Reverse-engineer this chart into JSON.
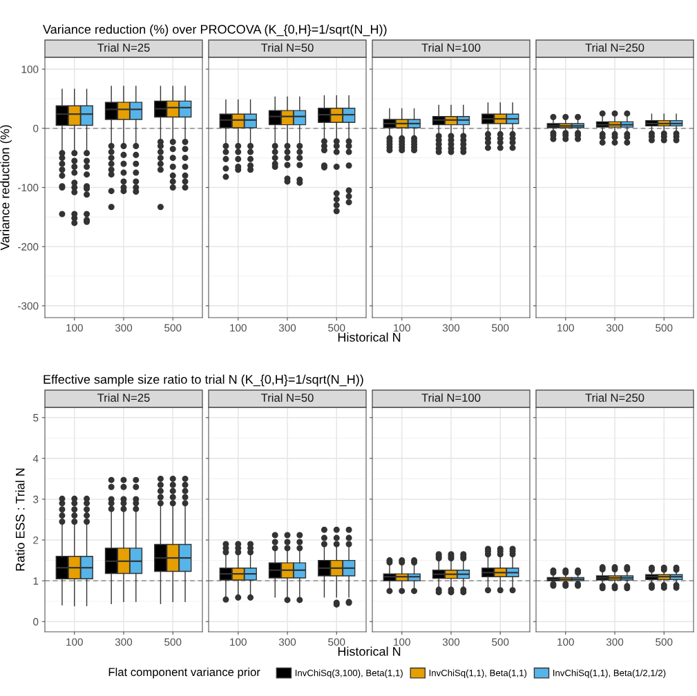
{
  "chart_data": [
    {
      "type": "box",
      "title": "Variance reduction (%) over PROCOVA (K_{0,H}=1/sqrt(N_H))",
      "subtitle": "Trial N=25",
      "ylabel": "Variance reduction (%)",
      "categories": [
        "100",
        "300",
        "500"
      ],
      "ylim": [
        -320,
        120
      ],
      "yticks": [
        -300,
        -200,
        -100,
        0,
        100
      ],
      "grid": true,
      "legend": "bottom",
      "legend_title": "Flat component variance prior",
      "ref_lines": [
        {
          "axis": "y",
          "value": 0,
          "color": "#999999",
          "line_style": "dashed"
        }
      ],
      "series": [
        {
          "name": "InvChiSq(3,100), Beta(1,1)",
          "color": "#000000",
          "boxes": [
            {
              "low": -38,
              "q1": 5,
              "median": 24,
              "q3": 38,
              "high": 66,
              "outliers": [
                -42,
                -50,
                -60,
                -70,
                -80,
                -98,
                -100,
                -145
              ]
            },
            {
              "low": -26,
              "q1": 15,
              "median": 32,
              "q3": 44,
              "high": 71,
              "outliers": [
                -30,
                -40,
                -50,
                -60,
                -70,
                -78,
                -106,
                -133
              ]
            },
            {
              "low": -20,
              "q1": 19,
              "median": 33,
              "q3": 46,
              "high": 71,
              "outliers": [
                -23,
                -30,
                -40,
                -50,
                -60,
                -70,
                -133
              ]
            }
          ]
        },
        {
          "name": "InvChiSq(1,1), Beta(1,1)",
          "color": "#E69F00",
          "boxes": [
            {
              "low": -38,
              "q1": 5,
              "median": 24,
              "q3": 38,
              "high": 66,
              "outliers": [
                -42,
                -55,
                -65,
                -75,
                -92,
                -100,
                -108,
                -145,
                -152,
                -160
              ]
            },
            {
              "low": -26,
              "q1": 15,
              "median": 32,
              "q3": 44,
              "high": 71,
              "outliers": [
                -30,
                -45,
                -60,
                -75,
                -90,
                -100,
                -106
              ]
            },
            {
              "low": -20,
              "q1": 19,
              "median": 35,
              "q3": 46,
              "high": 71,
              "outliers": [
                -23,
                -35,
                -50,
                -65,
                -80,
                -90,
                -100
              ]
            }
          ]
        },
        {
          "name": "InvChiSq(1,1), Beta(1/2,1/2)",
          "color": "#56B4E9",
          "boxes": [
            {
              "low": -38,
              "q1": 5,
              "median": 24,
              "q3": 38,
              "high": 66,
              "outliers": [
                -42,
                -55,
                -65,
                -78,
                -98,
                -102,
                -112,
                -145,
                -155,
                -158
              ]
            },
            {
              "low": -26,
              "q1": 15,
              "median": 32,
              "q3": 44,
              "high": 71,
              "outliers": [
                -30,
                -45,
                -60,
                -75,
                -90,
                -100,
                -107
              ]
            },
            {
              "low": -20,
              "q1": 19,
              "median": 35,
              "q3": 46,
              "high": 71,
              "outliers": [
                -23,
                -35,
                -50,
                -65,
                -80,
                -90,
                -100
              ]
            }
          ]
        }
      ]
    },
    {
      "type": "box",
      "subtitle": "Trial N=50",
      "xlabel": "Historical N",
      "categories": [
        "100",
        "300",
        "500"
      ],
      "ylim": [
        -320,
        120
      ],
      "yticks": [
        -300,
        -200,
        -100,
        0,
        100
      ],
      "tick_labels": "x",
      "grid": true,
      "ref_lines": [
        {
          "axis": "y",
          "value": 0,
          "color": "#999999",
          "line_style": "dashed"
        }
      ],
      "series": [
        {
          "color": "#000000",
          "boxes": [
            {
              "low": -27,
              "q1": 1,
              "median": 14,
              "q3": 24,
              "high": 48,
              "outliers": [
                -30,
                -40,
                -52,
                -68,
                -82
              ]
            },
            {
              "low": -26,
              "q1": 6,
              "median": 20,
              "q3": 30,
              "high": 53,
              "outliers": [
                -30,
                -40,
                -50,
                -60,
                -65
              ]
            },
            {
              "low": -20,
              "q1": 10,
              "median": 23,
              "q3": 34,
              "high": 55,
              "outliers": [
                -22,
                -30,
                -37,
                -63,
                -66
              ]
            }
          ]
        },
        {
          "color": "#E69F00",
          "boxes": [
            {
              "low": -27,
              "q1": 1,
              "median": 14,
              "q3": 24,
              "high": 48,
              "outliers": [
                -30,
                -40,
                -52,
                -65,
                -70
              ]
            },
            {
              "low": -26,
              "q1": 6,
              "median": 20,
              "q3": 30,
              "high": 53,
              "outliers": [
                -30,
                -40,
                -50,
                -62,
                -85,
                -90
              ]
            },
            {
              "low": -20,
              "q1": 10,
              "median": 23,
              "q3": 34,
              "high": 55,
              "outliers": [
                -22,
                -30,
                -40,
                -65,
                -110,
                -120,
                -130,
                -140
              ]
            }
          ]
        },
        {
          "color": "#56B4E9",
          "boxes": [
            {
              "low": -27,
              "q1": 1,
              "median": 14,
              "q3": 24,
              "high": 48,
              "outliers": [
                -30,
                -40,
                -52,
                -63,
                -70
              ]
            },
            {
              "low": -26,
              "q1": 6,
              "median": 20,
              "q3": 30,
              "high": 53,
              "outliers": [
                -30,
                -40,
                -50,
                -62,
                -87,
                -92
              ]
            },
            {
              "low": -20,
              "q1": 10,
              "median": 23,
              "q3": 34,
              "high": 55,
              "outliers": [
                -22,
                -30,
                -40,
                -63,
                -105,
                -115,
                -125
              ]
            }
          ]
        }
      ]
    },
    {
      "type": "box",
      "subtitle": "Trial N=100",
      "categories": [
        "100",
        "300",
        "500"
      ],
      "ylim": [
        -320,
        120
      ],
      "yticks": [
        -300,
        -200,
        -100,
        0,
        100
      ],
      "tick_labels": "x",
      "grid": true,
      "ref_lines": [
        {
          "axis": "y",
          "value": 0,
          "color": "#999999",
          "line_style": "dashed"
        }
      ],
      "series": [
        {
          "color": "#000000",
          "boxes": [
            {
              "low": -15,
              "q1": 1,
              "median": 8,
              "q3": 15,
              "high": 33,
              "outliers": [
                -17,
                -22,
                -27,
                -32,
                -37
              ]
            },
            {
              "low": -11,
              "q1": 6,
              "median": 14,
              "q3": 20,
              "high": 39,
              "outliers": [
                -13,
                -20,
                -27,
                -34,
                -40
              ]
            },
            {
              "low": -9,
              "q1": 8,
              "median": 16,
              "q3": 24,
              "high": 43,
              "outliers": [
                -10,
                -17,
                -24,
                -33
              ]
            }
          ]
        },
        {
          "color": "#E69F00",
          "boxes": [
            {
              "low": -15,
              "q1": 1,
              "median": 8,
              "q3": 15,
              "high": 33,
              "outliers": [
                -17,
                -22,
                -27,
                -32,
                -37
              ]
            },
            {
              "low": -11,
              "q1": 6,
              "median": 14,
              "q3": 20,
              "high": 39,
              "outliers": [
                -13,
                -20,
                -27,
                -34,
                -40
              ]
            },
            {
              "low": -9,
              "q1": 8,
              "median": 16,
              "q3": 24,
              "high": 43,
              "outliers": [
                -10,
                -17,
                -24,
                -33
              ]
            }
          ]
        },
        {
          "color": "#56B4E9",
          "boxes": [
            {
              "low": -15,
              "q1": 1,
              "median": 8,
              "q3": 15,
              "high": 33,
              "outliers": [
                -17,
                -22,
                -27,
                -32,
                -37
              ]
            },
            {
              "low": -11,
              "q1": 6,
              "median": 14,
              "q3": 20,
              "high": 39,
              "outliers": [
                -13,
                -20,
                -27,
                -34,
                -40
              ]
            },
            {
              "low": -9,
              "q1": 8,
              "median": 16,
              "q3": 24,
              "high": 43,
              "outliers": [
                -10,
                -17,
                -24,
                -33
              ]
            }
          ]
        }
      ]
    },
    {
      "type": "box",
      "subtitle": "Trial N=250",
      "categories": [
        "100",
        "300",
        "500"
      ],
      "ylim": [
        -320,
        120
      ],
      "yticks": [
        -300,
        -200,
        -100,
        0,
        100
      ],
      "tick_labels": "x",
      "grid": true,
      "ref_lines": [
        {
          "axis": "y",
          "value": 0,
          "color": "#999999",
          "line_style": "dashed"
        }
      ],
      "series": [
        {
          "color": "#000000",
          "boxes": [
            {
              "low": -6,
              "q1": 1,
              "median": 4,
              "q3": 8,
              "high": 16,
              "outliers": [
                19,
                -8,
                -12,
                -18
              ]
            },
            {
              "low": -7,
              "q1": 2,
              "median": 6,
              "q3": 11,
              "high": 22,
              "outliers": [
                25,
                -10,
                -15,
                -24
              ]
            },
            {
              "low": -6,
              "q1": 4,
              "median": 8,
              "q3": 13,
              "high": 24,
              "outliers": [
                -9,
                -14,
                -20
              ]
            }
          ]
        },
        {
          "color": "#E69F00",
          "boxes": [
            {
              "low": -6,
              "q1": 1,
              "median": 4,
              "q3": 8,
              "high": 16,
              "outliers": [
                19,
                -8,
                -12,
                -18
              ]
            },
            {
              "low": -7,
              "q1": 2,
              "median": 6,
              "q3": 11,
              "high": 22,
              "outliers": [
                25,
                -10,
                -15,
                -24
              ]
            },
            {
              "low": -6,
              "q1": 4,
              "median": 8,
              "q3": 13,
              "high": 24,
              "outliers": [
                -9,
                -14,
                -20
              ]
            }
          ]
        },
        {
          "color": "#56B4E9",
          "boxes": [
            {
              "low": -6,
              "q1": 1,
              "median": 4,
              "q3": 8,
              "high": 16,
              "outliers": [
                19,
                -8,
                -12,
                -18
              ]
            },
            {
              "low": -7,
              "q1": 2,
              "median": 6,
              "q3": 11,
              "high": 22,
              "outliers": [
                25,
                -10,
                -15,
                -24
              ]
            },
            {
              "low": -6,
              "q1": 4,
              "median": 8,
              "q3": 13,
              "high": 24,
              "outliers": [
                -9,
                -14,
                -20
              ]
            }
          ]
        }
      ]
    },
    {
      "type": "box",
      "title": "Effective sample size ratio to trial N (K_{0,H}=1/sqrt(N_H))",
      "subtitle": "Trial N=25",
      "ylabel": "Ratio ESS : Trial N",
      "categories": [
        "100",
        "300",
        "500"
      ],
      "ylim": [
        -0.25,
        5.25
      ],
      "yticks": [
        0,
        1,
        2,
        3,
        4,
        5
      ],
      "grid": true,
      "ref_lines": [
        {
          "axis": "y",
          "value": 1,
          "color": "#999999",
          "line_style": "dashed"
        }
      ],
      "series": [
        {
          "color": "#000000",
          "boxes": [
            {
              "low": 0.41,
              "q1": 1.05,
              "median": 1.32,
              "q3": 1.6,
              "high": 2.42,
              "outliers": [
                2.45,
                2.6,
                2.75,
                2.9,
                3.01
              ]
            },
            {
              "low": 0.44,
              "q1": 1.18,
              "median": 1.48,
              "q3": 1.8,
              "high": 2.73,
              "outliers": [
                2.76,
                2.9,
                3.0,
                3.3,
                3.47
              ]
            },
            {
              "low": 0.44,
              "q1": 1.23,
              "median": 1.56,
              "q3": 1.89,
              "high": 2.87,
              "outliers": [
                2.9,
                3.05,
                3.2,
                3.35,
                3.5
              ]
            }
          ]
        },
        {
          "color": "#E69F00",
          "boxes": [
            {
              "low": 0.39,
              "q1": 1.05,
              "median": 1.32,
              "q3": 1.6,
              "high": 2.42,
              "outliers": [
                2.45,
                2.6,
                2.75,
                2.9,
                3.01
              ]
            },
            {
              "low": 0.49,
              "q1": 1.18,
              "median": 1.48,
              "q3": 1.8,
              "high": 2.73,
              "outliers": [
                2.76,
                2.9,
                3.0,
                3.3,
                3.47
              ]
            },
            {
              "low": 0.49,
              "q1": 1.23,
              "median": 1.56,
              "q3": 1.89,
              "high": 2.87,
              "outliers": [
                2.9,
                3.05,
                3.2,
                3.35,
                3.5
              ]
            }
          ]
        },
        {
          "color": "#56B4E9",
          "boxes": [
            {
              "low": 0.39,
              "q1": 1.05,
              "median": 1.32,
              "q3": 1.6,
              "high": 2.42,
              "outliers": [
                2.45,
                2.6,
                2.75,
                2.9,
                3.01
              ]
            },
            {
              "low": 0.49,
              "q1": 1.18,
              "median": 1.48,
              "q3": 1.8,
              "high": 2.73,
              "outliers": [
                2.76,
                2.9,
                3.0,
                3.3,
                3.47
              ]
            },
            {
              "low": 0.49,
              "q1": 1.23,
              "median": 1.56,
              "q3": 1.89,
              "high": 2.87,
              "outliers": [
                2.9,
                3.05,
                3.2,
                3.35,
                3.5
              ]
            }
          ]
        }
      ]
    },
    {
      "type": "box",
      "subtitle": "Trial N=50",
      "xlabel": "Historical N",
      "categories": [
        "100",
        "300",
        "500"
      ],
      "ylim": [
        -0.25,
        5.25
      ],
      "yticks": [
        0,
        1,
        2,
        3,
        4,
        5
      ],
      "tick_labels": "x",
      "grid": true,
      "ref_lines": [
        {
          "axis": "y",
          "value": 1,
          "color": "#999999",
          "line_style": "dashed"
        }
      ],
      "series": [
        {
          "color": "#000000",
          "boxes": [
            {
              "low": 0.62,
              "q1": 1.02,
              "median": 1.17,
              "q3": 1.31,
              "high": 1.65,
              "outliers": [
                0.54,
                1.7,
                1.8,
                1.9
              ]
            },
            {
              "low": 0.6,
              "q1": 1.07,
              "median": 1.26,
              "q3": 1.44,
              "high": 1.75,
              "outliers": [
                1.8,
                1.95,
                2.12
              ]
            },
            {
              "low": 0.6,
              "q1": 1.12,
              "median": 1.31,
              "q3": 1.5,
              "high": 1.85,
              "outliers": [
                1.9,
                2.05,
                2.25
              ]
            }
          ]
        },
        {
          "color": "#E69F00",
          "boxes": [
            {
              "low": 0.62,
              "q1": 1.02,
              "median": 1.17,
              "q3": 1.31,
              "high": 1.65,
              "outliers": [
                0.59,
                1.7,
                1.8,
                1.9
              ]
            },
            {
              "low": 0.6,
              "q1": 1.07,
              "median": 1.26,
              "q3": 1.44,
              "high": 1.75,
              "outliers": [
                0.53,
                1.8,
                1.95,
                2.12
              ]
            },
            {
              "low": 0.6,
              "q1": 1.12,
              "median": 1.31,
              "q3": 1.5,
              "high": 1.85,
              "outliers": [
                0.42,
                0.46,
                1.9,
                2.05,
                2.25
              ]
            }
          ]
        },
        {
          "color": "#56B4E9",
          "boxes": [
            {
              "low": 0.62,
              "q1": 1.02,
              "median": 1.17,
              "q3": 1.31,
              "high": 1.65,
              "outliers": [
                0.59,
                1.7,
                1.8,
                1.9
              ]
            },
            {
              "low": 0.6,
              "q1": 1.07,
              "median": 1.26,
              "q3": 1.44,
              "high": 1.75,
              "outliers": [
                0.53,
                1.8,
                1.95,
                2.12
              ]
            },
            {
              "low": 0.6,
              "q1": 1.12,
              "median": 1.31,
              "q3": 1.5,
              "high": 1.85,
              "outliers": [
                0.46,
                0.48,
                1.9,
                2.05,
                2.25
              ]
            }
          ]
        }
      ]
    },
    {
      "type": "box",
      "subtitle": "Trial N=100",
      "categories": [
        "100",
        "300",
        "500"
      ],
      "ylim": [
        -0.25,
        5.25
      ],
      "yticks": [
        0,
        1,
        2,
        3,
        4,
        5
      ],
      "tick_labels": "x",
      "grid": true,
      "ref_lines": [
        {
          "axis": "y",
          "value": 1,
          "color": "#999999",
          "line_style": "dashed"
        }
      ],
      "series": [
        {
          "color": "#000000",
          "boxes": [
            {
              "low": 0.8,
              "q1": 1.0,
              "median": 1.1,
              "q3": 1.17,
              "high": 1.4,
              "outliers": [
                0.75,
                1.45,
                1.5
              ]
            },
            {
              "low": 0.86,
              "q1": 1.06,
              "median": 1.16,
              "q3": 1.26,
              "high": 1.52,
              "outliers": [
                0.72,
                0.78,
                1.55,
                1.6,
                1.65
              ]
            },
            {
              "low": 0.85,
              "q1": 1.1,
              "median": 1.2,
              "q3": 1.31,
              "high": 1.6,
              "outliers": [
                0.77,
                1.65,
                1.72,
                1.78
              ]
            }
          ]
        },
        {
          "color": "#E69F00",
          "boxes": [
            {
              "low": 0.8,
              "q1": 1.0,
              "median": 1.1,
              "q3": 1.17,
              "high": 1.4,
              "outliers": [
                0.75,
                1.45,
                1.5
              ]
            },
            {
              "low": 0.86,
              "q1": 1.06,
              "median": 1.16,
              "q3": 1.26,
              "high": 1.52,
              "outliers": [
                0.72,
                0.78,
                1.55,
                1.6,
                1.65
              ]
            },
            {
              "low": 0.85,
              "q1": 1.1,
              "median": 1.2,
              "q3": 1.31,
              "high": 1.6,
              "outliers": [
                0.77,
                1.65,
                1.72,
                1.78
              ]
            }
          ]
        },
        {
          "color": "#56B4E9",
          "boxes": [
            {
              "low": 0.8,
              "q1": 1.0,
              "median": 1.1,
              "q3": 1.17,
              "high": 1.4,
              "outliers": [
                0.75,
                1.45,
                1.5
              ]
            },
            {
              "low": 0.86,
              "q1": 1.06,
              "median": 1.16,
              "q3": 1.26,
              "high": 1.52,
              "outliers": [
                0.72,
                0.78,
                1.55,
                1.6,
                1.65
              ]
            },
            {
              "low": 0.85,
              "q1": 1.1,
              "median": 1.2,
              "q3": 1.31,
              "high": 1.6,
              "outliers": [
                0.77,
                1.65,
                1.72,
                1.78
              ]
            }
          ]
        }
      ]
    },
    {
      "type": "box",
      "subtitle": "Trial N=250",
      "categories": [
        "100",
        "300",
        "500"
      ],
      "ylim": [
        -0.25,
        5.25
      ],
      "yticks": [
        0,
        1,
        2,
        3,
        4,
        5
      ],
      "tick_labels": "x",
      "grid": true,
      "ref_lines": [
        {
          "axis": "y",
          "value": 1,
          "color": "#999999",
          "line_style": "dashed"
        }
      ],
      "series": [
        {
          "color": "#000000",
          "boxes": [
            {
              "low": 0.94,
              "q1": 1.0,
              "median": 1.04,
              "q3": 1.08,
              "high": 1.17,
              "outliers": [
                0.88,
                0.92,
                1.2,
                1.25
              ]
            },
            {
              "low": 0.91,
              "q1": 1.02,
              "median": 1.07,
              "q3": 1.12,
              "high": 1.26,
              "outliers": [
                0.82,
                0.87,
                1.28,
                1.33
              ]
            },
            {
              "low": 0.94,
              "q1": 1.03,
              "median": 1.1,
              "q3": 1.15,
              "high": 1.24,
              "outliers": [
                0.83,
                0.89,
                1.27,
                1.32
              ]
            }
          ]
        },
        {
          "color": "#E69F00",
          "boxes": [
            {
              "low": 0.94,
              "q1": 1.0,
              "median": 1.04,
              "q3": 1.08,
              "high": 1.17,
              "outliers": [
                0.88,
                0.92,
                1.2,
                1.25
              ]
            },
            {
              "low": 0.91,
              "q1": 1.02,
              "median": 1.07,
              "q3": 1.12,
              "high": 1.26,
              "outliers": [
                0.82,
                0.87,
                1.28,
                1.33
              ]
            },
            {
              "low": 0.94,
              "q1": 1.03,
              "median": 1.1,
              "q3": 1.15,
              "high": 1.24,
              "outliers": [
                0.83,
                0.89,
                1.27,
                1.32
              ]
            }
          ]
        },
        {
          "color": "#56B4E9",
          "boxes": [
            {
              "low": 0.94,
              "q1": 1.0,
              "median": 1.04,
              "q3": 1.08,
              "high": 1.17,
              "outliers": [
                0.88,
                0.92,
                1.2,
                1.25
              ]
            },
            {
              "low": 0.91,
              "q1": 1.02,
              "median": 1.07,
              "q3": 1.12,
              "high": 1.26,
              "outliers": [
                0.82,
                0.87,
                1.28,
                1.33
              ]
            },
            {
              "low": 0.94,
              "q1": 1.03,
              "median": 1.1,
              "q3": 1.15,
              "high": 1.24,
              "outliers": [
                0.83,
                0.89,
                1.27,
                1.32
              ]
            }
          ]
        }
      ]
    }
  ]
}
